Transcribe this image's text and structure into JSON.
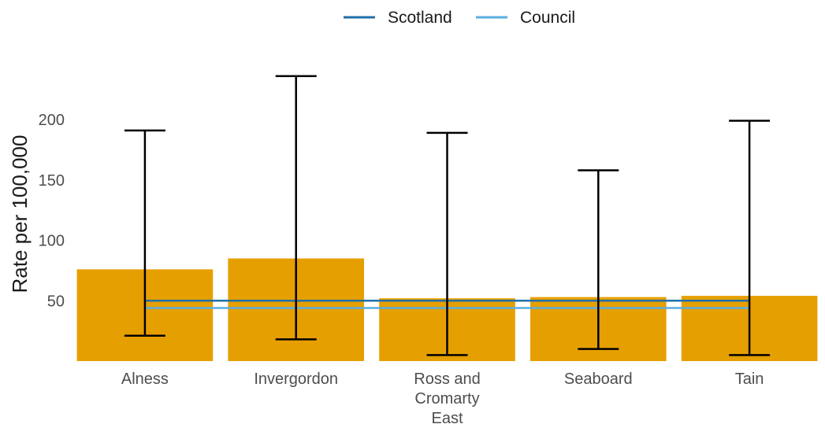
{
  "chart_data": {
    "type": "bar",
    "categories": [
      "Alness",
      "Invergordon",
      "Ross and Cromarty East",
      "Seaboard",
      "Tain"
    ],
    "category_lines": [
      [
        "Alness"
      ],
      [
        "Invergordon"
      ],
      [
        "Ross and",
        "Cromarty",
        "East"
      ],
      [
        "Seaboard"
      ],
      [
        "Tain"
      ]
    ],
    "values": [
      76,
      85,
      52,
      53,
      54
    ],
    "ci_upper": [
      191,
      236,
      189,
      158,
      199
    ],
    "ci_lower": [
      21,
      18,
      5,
      10,
      5
    ],
    "reference_lines": [
      {
        "name": "Scotland",
        "value": 50,
        "color": "#1f6fa8"
      },
      {
        "name": "Council",
        "value": 44,
        "color": "#5aaee0"
      }
    ],
    "ylabel": "Rate per 100,000",
    "xlabel": "",
    "yticks": [
      50,
      100,
      150,
      200
    ],
    "ylim": [
      0,
      250
    ],
    "grid": false,
    "legend_position": "top",
    "bar_color": "#e69f00",
    "errorbar_color": "#000000"
  }
}
